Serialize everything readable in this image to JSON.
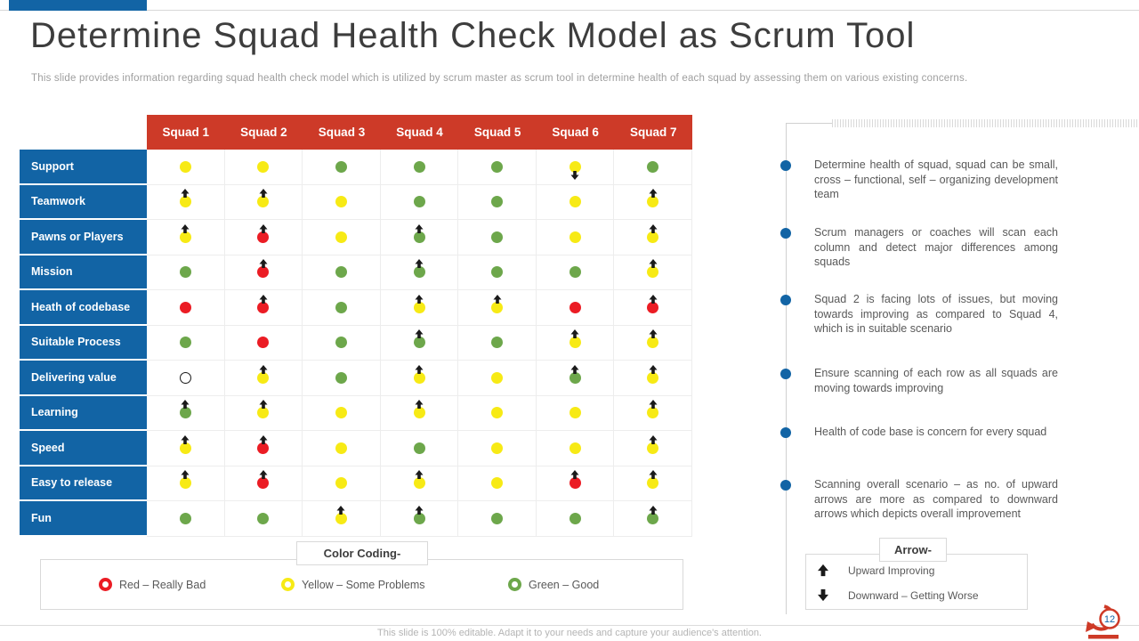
{
  "slide": {
    "title": "Determine Squad Health Check Model as Scrum Tool",
    "subtitle": "This slide provides information regarding squad health check model which is utilized by scrum master as scrum tool in determine health of each squad by assessing them on various existing concerns.",
    "footer": "This slide is 100% editable.  Adapt it to your needs and capture your audience's attention.",
    "page_number": "12"
  },
  "colors": {
    "header_red": "#CD3A28",
    "label_blue": "#1264A5",
    "dot_yellow": "#F7EA15",
    "dot_green": "#6DA74B",
    "dot_red": "#EB1C24"
  },
  "table": {
    "columns": [
      "Squad 1",
      "Squad 2",
      "Squad 3",
      "Squad 4",
      "Squad 5",
      "Squad 6",
      "Squad 7"
    ],
    "rows": [
      {
        "label": "Support",
        "cells": [
          {
            "color": "yellow"
          },
          {
            "color": "yellow"
          },
          {
            "color": "green"
          },
          {
            "color": "green"
          },
          {
            "color": "green"
          },
          {
            "color": "yellow",
            "arrow": "down"
          },
          {
            "color": "green"
          }
        ]
      },
      {
        "label": "Teamwork",
        "cells": [
          {
            "color": "yellow",
            "arrow": "up"
          },
          {
            "color": "yellow",
            "arrow": "up"
          },
          {
            "color": "yellow"
          },
          {
            "color": "green"
          },
          {
            "color": "green"
          },
          {
            "color": "yellow"
          },
          {
            "color": "yellow",
            "arrow": "up"
          }
        ]
      },
      {
        "label": "Pawns or Players",
        "cells": [
          {
            "color": "yellow",
            "arrow": "up"
          },
          {
            "color": "red",
            "arrow": "up"
          },
          {
            "color": "yellow"
          },
          {
            "color": "green",
            "arrow": "up"
          },
          {
            "color": "green"
          },
          {
            "color": "yellow"
          },
          {
            "color": "yellow",
            "arrow": "up"
          }
        ]
      },
      {
        "label": "Mission",
        "cells": [
          {
            "color": "green"
          },
          {
            "color": "red",
            "arrow": "up"
          },
          {
            "color": "green"
          },
          {
            "color": "green",
            "arrow": "up"
          },
          {
            "color": "green"
          },
          {
            "color": "green"
          },
          {
            "color": "yellow",
            "arrow": "up"
          }
        ]
      },
      {
        "label": "Heath of codebase",
        "cells": [
          {
            "color": "red"
          },
          {
            "color": "red",
            "arrow": "up"
          },
          {
            "color": "green"
          },
          {
            "color": "yellow",
            "arrow": "up"
          },
          {
            "color": "yellow",
            "arrow": "up"
          },
          {
            "color": "red"
          },
          {
            "color": "red",
            "arrow": "up"
          }
        ]
      },
      {
        "label": "Suitable Process",
        "cells": [
          {
            "color": "green"
          },
          {
            "color": "red"
          },
          {
            "color": "green"
          },
          {
            "color": "green",
            "arrow": "up"
          },
          {
            "color": "green"
          },
          {
            "color": "yellow",
            "arrow": "up"
          },
          {
            "color": "yellow",
            "arrow": "up"
          }
        ]
      },
      {
        "label": "Delivering value",
        "cells": [
          {
            "color": "empty"
          },
          {
            "color": "yellow",
            "arrow": "up"
          },
          {
            "color": "green"
          },
          {
            "color": "yellow",
            "arrow": "up"
          },
          {
            "color": "yellow"
          },
          {
            "color": "green",
            "arrow": "up"
          },
          {
            "color": "yellow",
            "arrow": "up"
          }
        ]
      },
      {
        "label": "Learning",
        "cells": [
          {
            "color": "green",
            "arrow": "up"
          },
          {
            "color": "yellow",
            "arrow": "up"
          },
          {
            "color": "yellow"
          },
          {
            "color": "yellow",
            "arrow": "up"
          },
          {
            "color": "yellow"
          },
          {
            "color": "yellow"
          },
          {
            "color": "yellow",
            "arrow": "up"
          }
        ]
      },
      {
        "label": "Speed",
        "cells": [
          {
            "color": "yellow",
            "arrow": "up"
          },
          {
            "color": "red",
            "arrow": "up"
          },
          {
            "color": "yellow"
          },
          {
            "color": "green"
          },
          {
            "color": "yellow"
          },
          {
            "color": "yellow"
          },
          {
            "color": "yellow",
            "arrow": "up"
          }
        ]
      },
      {
        "label": "Easy to release",
        "cells": [
          {
            "color": "yellow",
            "arrow": "up"
          },
          {
            "color": "red",
            "arrow": "up"
          },
          {
            "color": "yellow"
          },
          {
            "color": "yellow",
            "arrow": "up"
          },
          {
            "color": "yellow"
          },
          {
            "color": "red",
            "arrow": "up"
          },
          {
            "color": "yellow",
            "arrow": "up"
          }
        ]
      },
      {
        "label": "Fun",
        "cells": [
          {
            "color": "green"
          },
          {
            "color": "green"
          },
          {
            "color": "yellow",
            "arrow": "up"
          },
          {
            "color": "green",
            "arrow": "up"
          },
          {
            "color": "green"
          },
          {
            "color": "green"
          },
          {
            "color": "green",
            "arrow": "up"
          }
        ]
      }
    ]
  },
  "bullets": [
    "Determine health of squad, squad can be small, cross – functional, self – organizing development team",
    "Scrum managers or coaches will scan each column and detect major differences among squads",
    "Squad 2 is facing lots of issues, but moving towards improving as compared to Squad 4, which is in suitable scenario",
    "Ensure scanning of each row as all squads are moving towards improving",
    "Health of code base is concern for every squad",
    "Scanning overall scenario – as no. of upward arrows are more as compared to downward arrows which depicts overall improvement"
  ],
  "legend_color": {
    "title": "Color Coding-",
    "items": [
      {
        "color": "red",
        "label": "Red – Really Bad"
      },
      {
        "color": "yellow",
        "label": "Yellow – Some Problems"
      },
      {
        "color": "green",
        "label": "Green – Good"
      }
    ]
  },
  "legend_arrow": {
    "title": "Arrow-",
    "items": [
      {
        "dir": "up",
        "label": "Upward Improving"
      },
      {
        "dir": "down",
        "label": "Downward – Getting Worse"
      }
    ]
  }
}
